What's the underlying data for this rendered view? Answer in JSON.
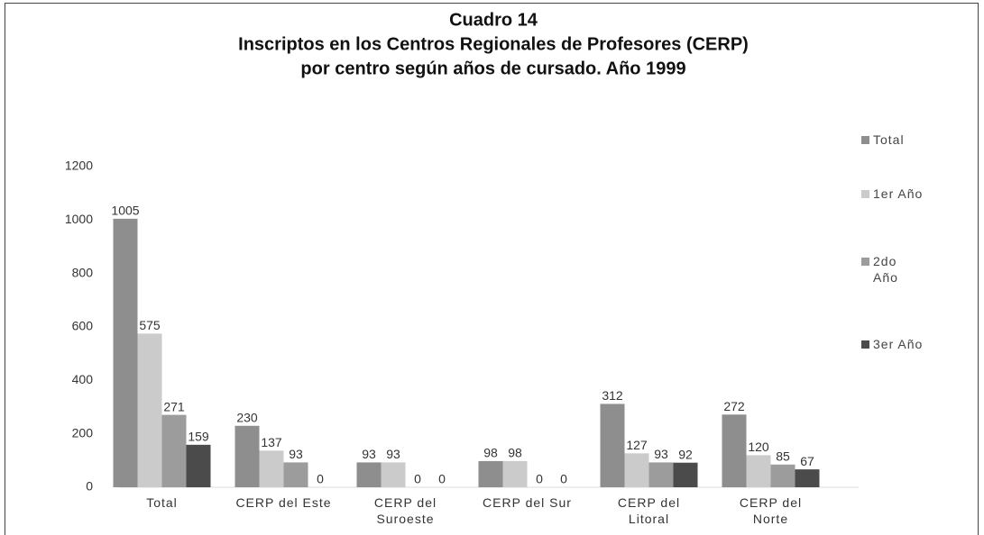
{
  "chart_data": {
    "type": "bar",
    "title": [
      "Cuadro 14",
      "Inscriptos en los Centros Regionales de Profesores (CERP)",
      "por centro según años de cursado. Año 1999"
    ],
    "categories": [
      "Total",
      "CERP del Este",
      "CERP del Suroeste",
      "CERP del Sur",
      "CERP del Litoral",
      "CERP del Norte"
    ],
    "series": [
      {
        "name": "Total",
        "color": "#8e8e8e",
        "values": [
          1005,
          230,
          93,
          98,
          312,
          272
        ]
      },
      {
        "name": "1er Año",
        "color": "#cbcbcb",
        "values": [
          575,
          137,
          93,
          98,
          127,
          120
        ]
      },
      {
        "name": "2do Año",
        "color": "#9c9c9c",
        "values": [
          271,
          93,
          0,
          0,
          93,
          85
        ]
      },
      {
        "name": "3er Año",
        "color": "#4b4b4b",
        "values": [
          159,
          0,
          0,
          0,
          92,
          67
        ]
      }
    ],
    "ylim": [
      0,
      1200
    ],
    "yticks": [
      0,
      200,
      400,
      600,
      800,
      1000,
      1200
    ],
    "grid": false,
    "legend": "right"
  }
}
